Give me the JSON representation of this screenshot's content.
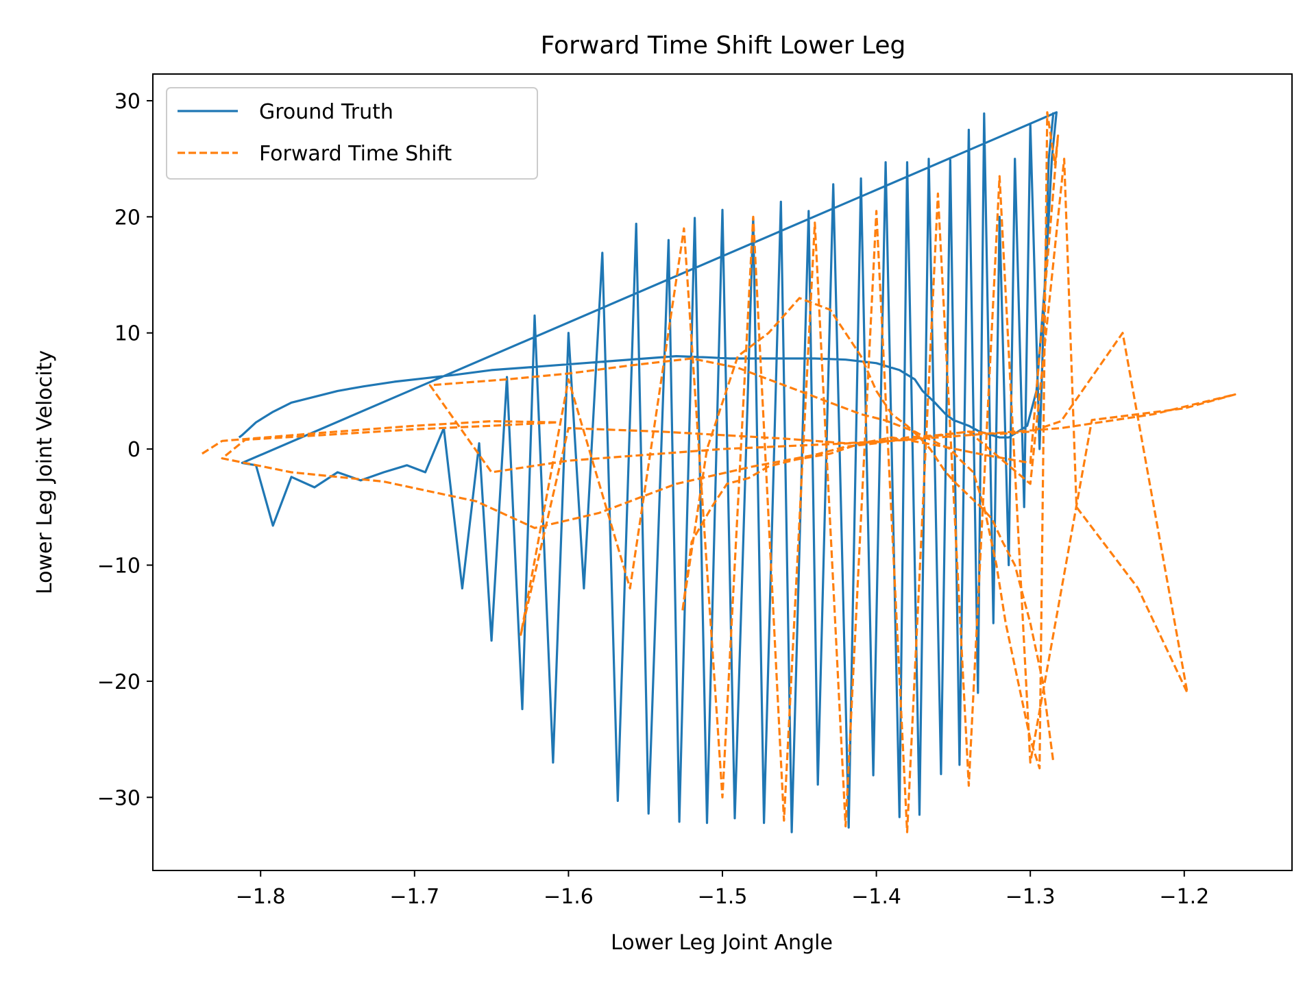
{
  "chart_data": {
    "type": "line",
    "title": "Forward Time Shift Lower Leg",
    "xlabel": "Lower Leg Joint Angle",
    "ylabel": "Lower Leg Joint Velocity",
    "xlim": [
      -1.87,
      -1.13
    ],
    "ylim": [
      -36.3,
      32.3
    ],
    "xticks": [
      -1.8,
      -1.7,
      -1.6,
      -1.5,
      -1.4,
      -1.3,
      -1.2
    ],
    "xtick_labels": [
      "−1.8",
      "−1.7",
      "−1.6",
      "−1.5",
      "−1.4",
      "−1.3",
      "−1.2"
    ],
    "yticks": [
      30,
      20,
      10,
      0,
      -10,
      -20,
      -30
    ],
    "ytick_labels": [
      "30",
      "20",
      "10",
      "0",
      "−10",
      "−20",
      "−30"
    ],
    "grid": false,
    "legend": {
      "location": "upper left"
    },
    "series": [
      {
        "name": "Ground Truth",
        "color": "#1f77b4",
        "style": "solid",
        "x": [
          -1.814,
          -1.812,
          -1.803,
          -1.792,
          -1.78,
          -1.765,
          -1.75,
          -1.733,
          -1.713,
          -1.693,
          -1.673,
          -1.65,
          -1.63,
          -1.61,
          -1.59,
          -1.57,
          -1.55,
          -1.53,
          -1.51,
          -1.495,
          -1.48,
          -1.46,
          -1.44,
          -1.42,
          -1.4,
          -1.385,
          -1.375,
          -1.37,
          -1.362,
          -1.355,
          -1.35,
          -1.34,
          -1.333,
          -1.325,
          -1.32,
          -1.314,
          -1.308,
          -1.302,
          -1.296,
          -1.29,
          -1.286,
          -1.283,
          -1.812,
          -1.803,
          -1.792,
          -1.78,
          -1.765,
          -1.75,
          -1.735,
          -1.72,
          -1.705,
          -1.693,
          -1.681,
          -1.669,
          -1.658,
          -1.65,
          -1.64,
          -1.63,
          -1.622,
          -1.61,
          -1.6,
          -1.59,
          -1.578,
          -1.568,
          -1.556,
          -1.548,
          -1.535,
          -1.528,
          -1.518,
          -1.51,
          -1.5,
          -1.492,
          -1.48,
          -1.473,
          -1.462,
          -1.455,
          -1.444,
          -1.438,
          -1.428,
          -1.418,
          -1.41,
          -1.402,
          -1.394,
          -1.385,
          -1.38,
          -1.372,
          -1.366,
          -1.358,
          -1.352,
          -1.346,
          -1.34,
          -1.334,
          -1.33,
          -1.324,
          -1.32,
          -1.314,
          -1.31,
          -1.304,
          -1.3,
          -1.294,
          -1.288,
          -1.285
        ],
        "y": [
          1.0,
          1.2,
          2.3,
          3.2,
          4.0,
          4.5,
          5.0,
          5.4,
          5.8,
          6.1,
          6.4,
          6.8,
          7.0,
          7.2,
          7.4,
          7.6,
          7.8,
          8.0,
          7.9,
          7.8,
          7.8,
          7.8,
          7.8,
          7.7,
          7.4,
          6.8,
          6.0,
          5.0,
          4.0,
          3.0,
          2.5,
          2.0,
          1.5,
          1.2,
          1.0,
          1.0,
          1.5,
          2.0,
          5.0,
          15.0,
          25.0,
          29.0,
          -1.2,
          -1.4,
          -6.6,
          -2.4,
          -3.3,
          -2.0,
          -2.7,
          -2.0,
          -1.4,
          -2.0,
          1.8,
          -12.0,
          0.5,
          -16.5,
          6.2,
          -22.4,
          11.5,
          -27.0,
          10.0,
          -12.0,
          16.9,
          -30.3,
          19.4,
          -31.4,
          18.0,
          -32.1,
          19.9,
          -32.2,
          20.6,
          -31.8,
          19.9,
          -32.2,
          21.3,
          -33.0,
          20.5,
          -28.9,
          22.8,
          -32.6,
          23.3,
          -28.1,
          24.7,
          -31.7,
          24.7,
          -31.5,
          25.0,
          -28.0,
          24.9,
          -27.2,
          27.5,
          -21.0,
          28.9,
          -15.0,
          20.0,
          -10.0,
          25.0,
          -5.0,
          28.0,
          0.0,
          25.0,
          29.0
        ]
      },
      {
        "name": "Forward Time Shift",
        "color": "#ff7f0e",
        "style": "dashed",
        "x": [
          -1.838,
          -1.825,
          -1.76,
          -1.7,
          -1.65,
          -1.607,
          -1.65,
          -1.7,
          -1.76,
          -1.81,
          -1.825,
          -1.78,
          -1.72,
          -1.66,
          -1.622,
          -1.58,
          -1.53,
          -1.48,
          -1.44,
          -1.42,
          -1.4,
          -1.38,
          -1.36,
          -1.34,
          -1.32,
          -1.3,
          -1.28,
          -1.24,
          -1.198,
          -1.23,
          -1.27,
          -1.278,
          -1.3,
          -1.34,
          -1.38,
          -1.42,
          -1.46,
          -1.5,
          -1.54,
          -1.6,
          -1.631,
          -1.6,
          -1.56,
          -1.525,
          -1.5,
          -1.48,
          -1.46,
          -1.44,
          -1.42,
          -1.4,
          -1.38,
          -1.36,
          -1.34,
          -1.32,
          -1.3,
          -1.26,
          -1.2,
          -1.167,
          -1.22,
          -1.28,
          -1.34,
          -1.4,
          -1.45,
          -1.5,
          -1.55,
          -1.6,
          -1.65,
          -1.69,
          -1.64,
          -1.6,
          -1.56,
          -1.52,
          -1.49,
          -1.47,
          -1.45,
          -1.43,
          -1.41,
          -1.395,
          -1.385,
          -1.375,
          -1.368,
          -1.36,
          -1.352,
          -1.345,
          -1.337,
          -1.33,
          -1.322,
          -1.316,
          -1.308,
          -1.3,
          -1.294,
          -1.289,
          -1.284,
          -1.282,
          -1.3,
          -1.33,
          -1.36,
          -1.39,
          -1.41,
          -1.43,
          -1.452,
          -1.47,
          -1.483,
          -1.497,
          -1.507,
          -1.52,
          -1.526,
          -1.51,
          -1.49,
          -1.47,
          -1.45,
          -1.43,
          -1.41,
          -1.4,
          -1.39,
          -1.38,
          -1.372,
          -1.365,
          -1.36,
          -1.355,
          -1.348,
          -1.34,
          -1.332,
          -1.325,
          -1.318,
          -1.31,
          -1.3,
          -1.292,
          -1.285
        ],
        "y": [
          -0.4,
          0.7,
          1.4,
          2.0,
          2.4,
          2.3,
          2.0,
          1.7,
          1.2,
          0.8,
          -0.8,
          -2.0,
          -2.8,
          -4.5,
          -6.8,
          -5.5,
          -3.0,
          -1.5,
          -0.5,
          0.2,
          0.5,
          1.0,
          1.2,
          1.5,
          1.3,
          1.5,
          2.4,
          10.0,
          -21.0,
          -12.0,
          -5.0,
          25.0,
          -3.0,
          1.5,
          0.8,
          0.5,
          0.9,
          1.2,
          1.5,
          1.8,
          -16.0,
          6.0,
          -12.0,
          19.0,
          -30.0,
          20.0,
          -32.0,
          19.5,
          -32.5,
          20.5,
          -33.0,
          22.0,
          -29.0,
          23.5,
          -27.0,
          2.5,
          3.5,
          4.7,
          3.0,
          1.8,
          1.2,
          0.6,
          0.3,
          0.0,
          -0.5,
          -1.0,
          -2.0,
          5.5,
          6.0,
          6.5,
          7.2,
          7.8,
          7.0,
          6.0,
          5.0,
          4.0,
          3.0,
          2.5,
          2.0,
          1.5,
          1.0,
          0.5,
          0.0,
          -1.0,
          -2.0,
          -5.0,
          -10.0,
          -15.0,
          -20.0,
          -25.0,
          -27.5,
          29.0,
          24.5,
          27.0,
          -1.2,
          -0.5,
          0.3,
          1.0,
          0.5,
          -0.4,
          -0.9,
          -1.5,
          -2.5,
          -3.0,
          -5.0,
          -8.0,
          -14.0,
          0.0,
          8.0,
          10.0,
          13.0,
          12.0,
          8.0,
          5.0,
          3.0,
          2.0,
          1.0,
          0.0,
          -1.0,
          -2.0,
          -3.0,
          -4.0,
          -5.0,
          -6.0,
          -8.0,
          -10.0,
          -15.0,
          -20.0,
          -27.0
        ]
      }
    ]
  }
}
